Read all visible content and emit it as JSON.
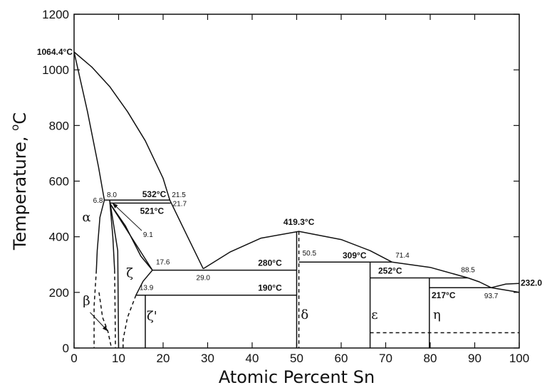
{
  "chart_data": {
    "type": "line",
    "title": "",
    "xlabel": "Atomic Percent Sn",
    "ylabel": "Temperature, °C",
    "ylabel_main": "Temperature, ",
    "ylabel_super": "o",
    "ylabel_unit": "C",
    "xlim": [
      0,
      100
    ],
    "ylim": [
      0,
      1200
    ],
    "xticks": [
      0,
      10,
      20,
      30,
      40,
      50,
      60,
      70,
      80,
      90,
      100
    ],
    "yticks": [
      0,
      200,
      400,
      600,
      800,
      1000,
      1200
    ],
    "grid": false,
    "legend": "none",
    "series": [
      {
        "style": "solid",
        "points": [
          [
            0,
            1064.4
          ],
          [
            4,
            1010
          ],
          [
            8,
            940
          ],
          [
            12,
            850
          ],
          [
            16,
            745
          ],
          [
            20,
            610
          ],
          [
            21.5,
            532
          ]
        ]
      },
      {
        "style": "solid",
        "points": [
          [
            21.5,
            532
          ],
          [
            25.5,
            400
          ],
          [
            29,
            285
          ]
        ]
      },
      {
        "style": "solid",
        "points": [
          [
            0,
            1064.4
          ],
          [
            3,
            850
          ],
          [
            5.5,
            650
          ],
          [
            6.8,
            532
          ]
        ]
      },
      {
        "style": "solid",
        "points": [
          [
            6.8,
            532
          ],
          [
            5.8,
            470
          ],
          [
            5.2,
            350
          ],
          [
            5,
            280
          ]
        ]
      },
      {
        "style": "dashed",
        "points": [
          [
            5,
            280
          ],
          [
            4.5,
            150
          ],
          [
            4.5,
            0
          ]
        ]
      },
      {
        "style": "solid",
        "points": [
          [
            8,
            532
          ],
          [
            8.7,
            400
          ],
          [
            9.1,
            280
          ]
        ]
      },
      {
        "style": "dashed",
        "points": [
          [
            9.1,
            280
          ],
          [
            9.2,
            150
          ],
          [
            9.3,
            0
          ]
        ]
      },
      {
        "style": "solid",
        "points": [
          [
            8,
            532
          ],
          [
            9.8,
            350
          ],
          [
            10,
            0
          ]
        ]
      },
      {
        "style": "dashed",
        "points": [
          [
            5.6,
            200
          ],
          [
            6.4,
            110
          ],
          [
            7.6,
            60
          ],
          [
            8.4,
            0
          ]
        ]
      },
      {
        "style": "solid",
        "points": [
          [
            8,
            521
          ],
          [
            11.5,
            440
          ],
          [
            15,
            330
          ],
          [
            17.6,
            280
          ]
        ]
      },
      {
        "style": "solid",
        "points": [
          [
            8,
            521
          ],
          [
            17.6,
            280
          ]
        ]
      },
      {
        "style": "solid",
        "points": [
          [
            17.6,
            280
          ],
          [
            15.5,
            240
          ],
          [
            13.9,
            190
          ]
        ]
      },
      {
        "style": "dashed",
        "points": [
          [
            13.9,
            190
          ],
          [
            12,
            110
          ],
          [
            11,
            30
          ],
          [
            11,
            0
          ]
        ]
      },
      {
        "style": "solid",
        "points": [
          [
            16,
            190
          ],
          [
            16,
            0
          ]
        ]
      },
      {
        "style": "solid",
        "points": [
          [
            29,
            285
          ],
          [
            35,
            345
          ],
          [
            42,
            395
          ],
          [
            50.5,
            419.3
          ],
          [
            60,
            390
          ],
          [
            66.5,
            350
          ],
          [
            71.4,
            309
          ]
        ]
      },
      {
        "style": "solid",
        "points": [
          [
            71.4,
            309
          ],
          [
            80,
            290
          ],
          [
            88.5,
            252
          ]
        ]
      },
      {
        "style": "solid",
        "points": [
          [
            88.5,
            252
          ],
          [
            91,
            238
          ],
          [
            93.7,
            217
          ]
        ]
      },
      {
        "style": "solid",
        "points": [
          [
            93.7,
            217
          ],
          [
            97,
            230
          ],
          [
            100,
            232
          ]
        ]
      },
      {
        "style": "solid",
        "points": [
          [
            93.7,
            217
          ],
          [
            100,
            200
          ]
        ]
      },
      {
        "style": "solid",
        "points": [
          [
            50,
            419.3
          ],
          [
            50,
            0
          ]
        ]
      },
      {
        "style": "dashed",
        "points": [
          [
            50.5,
            419.3
          ],
          [
            50.5,
            0
          ]
        ]
      },
      {
        "style": "solid",
        "points": [
          [
            66.5,
            309
          ],
          [
            66.5,
            0
          ]
        ]
      },
      {
        "style": "solid",
        "points": [
          [
            79.8,
            252
          ],
          [
            79.8,
            0
          ]
        ]
      },
      {
        "style": "dashed",
        "points": [
          [
            66.5,
            55
          ],
          [
            100,
            55
          ]
        ]
      },
      {
        "style": "solid",
        "points": [
          [
            6.8,
            532
          ],
          [
            21.5,
            532
          ]
        ]
      },
      {
        "style": "solid",
        "points": [
          [
            8,
            521
          ],
          [
            21.7,
            521
          ]
        ]
      },
      {
        "style": "solid",
        "points": [
          [
            17.6,
            280
          ],
          [
            50,
            280
          ]
        ]
      },
      {
        "style": "solid",
        "points": [
          [
            13.9,
            190
          ],
          [
            50,
            190
          ]
        ]
      },
      {
        "style": "solid",
        "points": [
          [
            50.5,
            309
          ],
          [
            71.4,
            309
          ]
        ]
      },
      {
        "style": "solid",
        "points": [
          [
            66.5,
            252
          ],
          [
            88.5,
            252
          ]
        ]
      },
      {
        "style": "solid",
        "points": [
          [
            79.8,
            217
          ],
          [
            93.7,
            217
          ]
        ]
      }
    ],
    "annotations": [
      {
        "text": "1064.4°C",
        "x": 0,
        "y": 1064.4,
        "style": "bold",
        "anchor": "end",
        "dx": -2,
        "dy": 4
      },
      {
        "text": "6.8",
        "x": 6.8,
        "y": 532,
        "style": "small",
        "anchor": "end",
        "dx": -2,
        "dy": 4
      },
      {
        "text": "8.0",
        "x": 8.0,
        "y": 532,
        "style": "small",
        "anchor": "middle",
        "dx": 3,
        "dy": -4
      },
      {
        "text": "532°C",
        "x": 18,
        "y": 532,
        "style": "bold",
        "anchor": "middle",
        "dx": 0,
        "dy": -4
      },
      {
        "text": "21.5",
        "x": 21.5,
        "y": 532,
        "style": "small",
        "anchor": "start",
        "dx": 3,
        "dy": -4
      },
      {
        "text": "521°C",
        "x": 17.5,
        "y": 521,
        "style": "bold",
        "anchor": "middle",
        "dx": 0,
        "dy": 15
      },
      {
        "text": "21.7",
        "x": 21.7,
        "y": 521,
        "style": "small",
        "anchor": "start",
        "dx": 3,
        "dy": 4
      },
      {
        "text": "9.1",
        "x": 15.5,
        "y": 410,
        "style": "small",
        "anchor": "start",
        "dx": 0,
        "dy": 4
      },
      {
        "text": "17.6",
        "x": 17.6,
        "y": 280,
        "style": "small",
        "anchor": "start",
        "dx": 5,
        "dy": -8
      },
      {
        "text": "29.0",
        "x": 29,
        "y": 285,
        "style": "small",
        "anchor": "middle",
        "dx": 0,
        "dy": 16
      },
      {
        "text": "280°C",
        "x": 44,
        "y": 280,
        "style": "bold",
        "anchor": "middle",
        "dx": 0,
        "dy": -6
      },
      {
        "text": "13.9",
        "x": 13.9,
        "y": 190,
        "style": "small",
        "anchor": "start",
        "dx": 5,
        "dy": -7
      },
      {
        "text": "190°C",
        "x": 44,
        "y": 190,
        "style": "bold",
        "anchor": "middle",
        "dx": 0,
        "dy": -6
      },
      {
        "text": "419.3°C",
        "x": 50.5,
        "y": 419.3,
        "style": "bold",
        "anchor": "middle",
        "dx": 0,
        "dy": -9
      },
      {
        "text": "50.5",
        "x": 50.5,
        "y": 309,
        "style": "small",
        "anchor": "start",
        "dx": 5,
        "dy": -9
      },
      {
        "text": "309°C",
        "x": 63,
        "y": 309,
        "style": "bold",
        "anchor": "middle",
        "dx": 0,
        "dy": -5
      },
      {
        "text": "71.4",
        "x": 71.4,
        "y": 309,
        "style": "small",
        "anchor": "start",
        "dx": 5,
        "dy": -6
      },
      {
        "text": "252°C",
        "x": 71,
        "y": 252,
        "style": "bold",
        "anchor": "middle",
        "dx": 0,
        "dy": -6
      },
      {
        "text": "88.5",
        "x": 88.5,
        "y": 252,
        "style": "small",
        "anchor": "middle",
        "dx": 0,
        "dy": -8
      },
      {
        "text": "217°C",
        "x": 83,
        "y": 217,
        "style": "bold",
        "anchor": "middle",
        "dx": 0,
        "dy": 15
      },
      {
        "text": "93.7",
        "x": 93.7,
        "y": 217,
        "style": "small",
        "anchor": "middle",
        "dx": 0,
        "dy": 15
      },
      {
        "text": "232.0",
        "x": 100,
        "y": 232,
        "style": "bold",
        "anchor": "start",
        "dx": 2,
        "dy": 3
      }
    ],
    "phase_labels": [
      {
        "text": "α",
        "x": 2.8,
        "y": 455
      },
      {
        "text": "ζ",
        "x": 12.5,
        "y": 255
      },
      {
        "text": "β",
        "x": 2.8,
        "y": 155
      },
      {
        "text": "ζ'",
        "x": 17.5,
        "y": 100
      },
      {
        "text": "δ",
        "x": 51.8,
        "y": 105
      },
      {
        "text": "ε",
        "x": 67.5,
        "y": 105
      },
      {
        "text": "η",
        "x": 81.5,
        "y": 105
      }
    ],
    "arrows": [
      {
        "from": [
          3.6,
          128
        ],
        "to": [
          7.5,
          62
        ]
      },
      {
        "from": [
          15.2,
          422
        ],
        "to": [
          8.7,
          520
        ]
      }
    ]
  }
}
